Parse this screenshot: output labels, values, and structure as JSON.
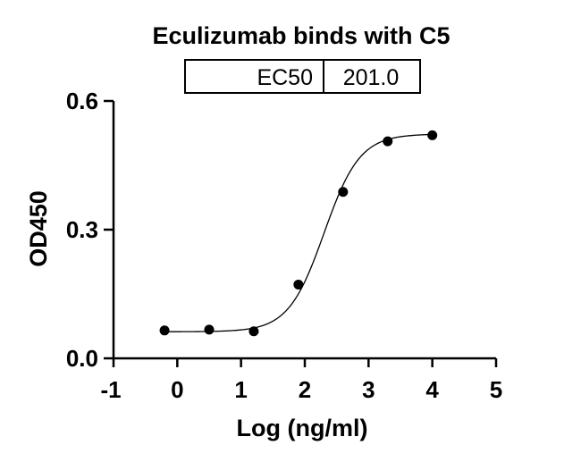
{
  "chart_data": {
    "type": "scatter",
    "title": "Eculizumab binds with C5",
    "xlabel": "Log (ng/ml)",
    "ylabel": "OD450",
    "xlim": [
      -1,
      5
    ],
    "ylim": [
      0,
      0.6
    ],
    "x_ticks": [
      "-1",
      "0",
      "1",
      "2",
      "3",
      "4",
      "5"
    ],
    "y_ticks": [
      "0.0",
      "0.3",
      "0.6"
    ],
    "grid": false,
    "fit": "four-parameter logistic curve",
    "series": [
      {
        "points": [
          {
            "x": -0.2,
            "y": 0.065
          },
          {
            "x": 0.5,
            "y": 0.067
          },
          {
            "x": 1.2,
            "y": 0.063
          },
          {
            "x": 1.9,
            "y": 0.172
          },
          {
            "x": 2.6,
            "y": 0.388
          },
          {
            "x": 3.3,
            "y": 0.506
          },
          {
            "x": 4.0,
            "y": 0.52
          }
        ]
      }
    ],
    "annotation_table": {
      "label": "EC50",
      "value": "201.0"
    }
  }
}
